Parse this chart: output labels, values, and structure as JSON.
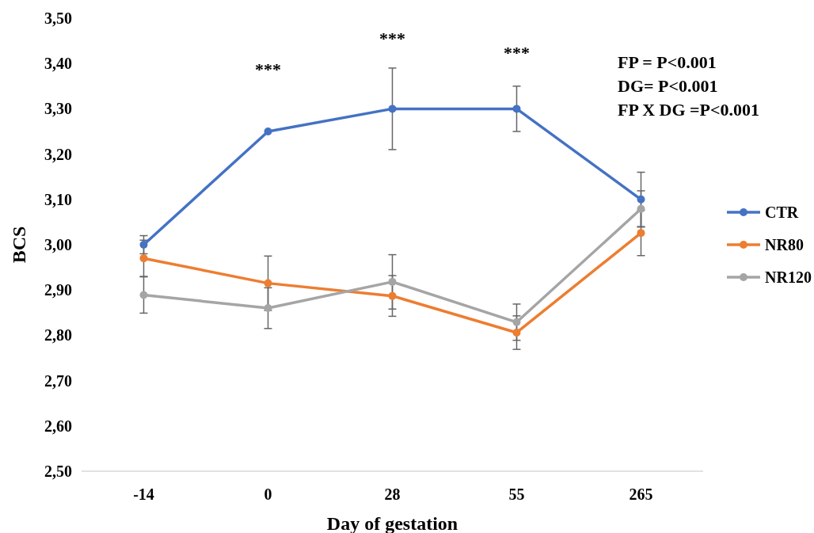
{
  "chart_data": {
    "type": "line",
    "xlabel": "Day of gestation",
    "ylabel": "BCS",
    "categories": [
      "-14",
      "0",
      "28",
      "55",
      "265"
    ],
    "series": [
      {
        "name": "CTR",
        "color": "#4472c4",
        "values": [
          3.0,
          3.25,
          3.3,
          3.3,
          3.1
        ],
        "errors": [
          0.02,
          null,
          0.09,
          0.05,
          0.06
        ]
      },
      {
        "name": "NR80",
        "color": "#ed7d31",
        "values": [
          2.97,
          2.915,
          2.887,
          2.806,
          3.026
        ],
        "errors": [
          0.04,
          0.06,
          0.045,
          0.037,
          0.05
        ]
      },
      {
        "name": "NR120",
        "color": "#a5a5a5",
        "values": [
          2.889,
          2.86,
          2.918,
          2.829,
          3.079
        ],
        "errors": [
          0.04,
          0.045,
          0.06,
          0.04,
          0.04
        ]
      }
    ],
    "ylim": [
      2.5,
      3.5
    ],
    "yticks": [
      {
        "value": 2.5,
        "label": "2,50"
      },
      {
        "value": 2.6,
        "label": "2,60"
      },
      {
        "value": 2.7,
        "label": "2,70"
      },
      {
        "value": 2.8,
        "label": "2,80"
      },
      {
        "value": 2.9,
        "label": "2,90"
      },
      {
        "value": 3.0,
        "label": "3,00"
      },
      {
        "value": 3.1,
        "label": "3,10"
      },
      {
        "value": 3.2,
        "label": "3,20"
      },
      {
        "value": 3.3,
        "label": "3,30"
      },
      {
        "value": 3.4,
        "label": "3,40"
      },
      {
        "value": 3.5,
        "label": "3,50"
      }
    ],
    "annotations": [
      "***",
      "***",
      "***",
      "FP = P<0.001",
      "DG= P<0.001",
      "FP X DG =P<0.001"
    ],
    "grid": false,
    "legend": "right",
    "marker": "circle",
    "line_style": "solid"
  }
}
